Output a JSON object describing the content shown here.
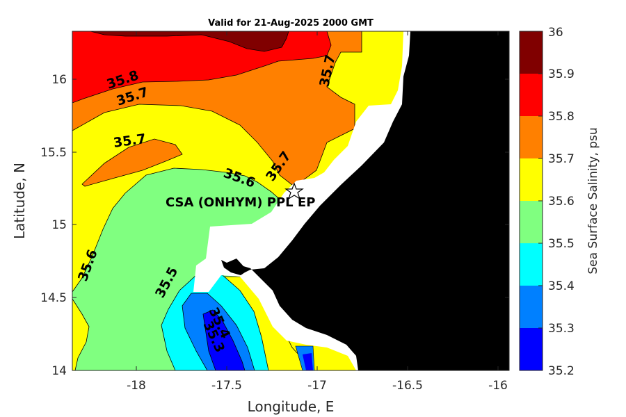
{
  "title": "Valid for 21-Aug-2025 2000 GMT",
  "xlabel": "Longitude, E",
  "ylabel": "Latitude, N",
  "colorbar_label": "Sea Surface Salinity, psu",
  "x_ticks": [
    "-18",
    "-17.5",
    "-17",
    "-16.5",
    "-16"
  ],
  "y_ticks": [
    "16",
    "15.5",
    "15",
    "14.5",
    "14"
  ],
  "colorbar_ticks": [
    "36",
    "35.9",
    "35.8",
    "35.7",
    "35.6",
    "35.5",
    "35.4",
    "35.3",
    "35.2"
  ],
  "colors": {
    "35.2-35.3": "#0000ff",
    "35.3-35.4": "#0080ff",
    "35.4-35.5": "#00ffff",
    "35.5-35.6": "#80ff80",
    "35.6-35.7": "#ffff00",
    "35.7-35.8": "#ff8000",
    "35.8-35.9": "#ff0000",
    "35.9-36": "#800000",
    "land": "#000000",
    "no_data": "#ffffff"
  },
  "contour_labels": [
    "35.8",
    "35.7",
    "35.7",
    "35.7",
    "35.7",
    "35.6",
    "35.6",
    "35.5",
    "35.4",
    "35.3"
  ],
  "site": {
    "label": "CSA (ONHYM) PPL EP",
    "marker": "star-icon"
  },
  "chart_data": {
    "type": "filled-contour map",
    "variable": "Sea Surface Salinity",
    "units": "psu",
    "xlim": [
      -18.35,
      -15.93
    ],
    "ylim": [
      14.0,
      16.33
    ],
    "clim": [
      35.2,
      36.0
    ],
    "levels": [
      35.2,
      35.3,
      35.4,
      35.5,
      35.6,
      35.7,
      35.8,
      35.9,
      36.0
    ],
    "site_location": {
      "lon": -17.1,
      "lat": 15.22
    }
  }
}
